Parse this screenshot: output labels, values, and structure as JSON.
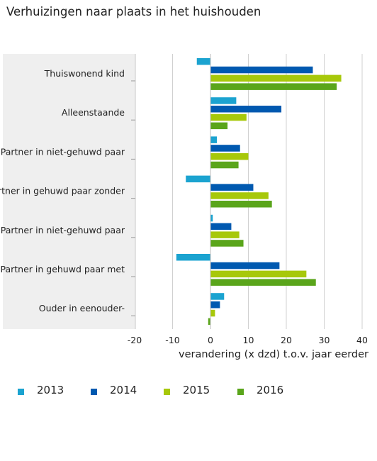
{
  "chart_data": {
    "type": "bar",
    "orientation": "horizontal",
    "title": "Verhuizingen naar plaats in het huishouden",
    "xlabel": "verandering (x dzd) t.o.v. jaar eerder",
    "ylabel": "",
    "xlim": [
      -20,
      40
    ],
    "xticks": [
      -20,
      -10,
      0,
      10,
      20,
      30,
      40
    ],
    "grid": true,
    "legend_position": "bottom",
    "categories": [
      "Thuiswonend kind",
      "Alleenstaande",
      "Partner in niet-gehuwd paar",
      "Partner in gehuwd paar zonder",
      "Partner in niet-gehuwd paar",
      "Partner in gehuwd paar met",
      "Ouder in eenouder-"
    ],
    "series": [
      {
        "name": "2013",
        "color": "#1ba3d0",
        "values": [
          -3.6,
          6.8,
          1.7,
          -6.5,
          0.6,
          -9.0,
          3.6
        ]
      },
      {
        "name": "2014",
        "color": "#0059b0",
        "values": [
          27.0,
          18.7,
          7.8,
          11.3,
          5.5,
          18.2,
          2.5
        ]
      },
      {
        "name": "2015",
        "color": "#a7c80a",
        "values": [
          34.5,
          9.5,
          10.0,
          15.3,
          7.6,
          25.3,
          1.2
        ]
      },
      {
        "name": "2016",
        "color": "#5aa51b",
        "values": [
          33.3,
          4.5,
          7.4,
          16.2,
          8.7,
          27.8,
          -0.6
        ]
      }
    ]
  }
}
